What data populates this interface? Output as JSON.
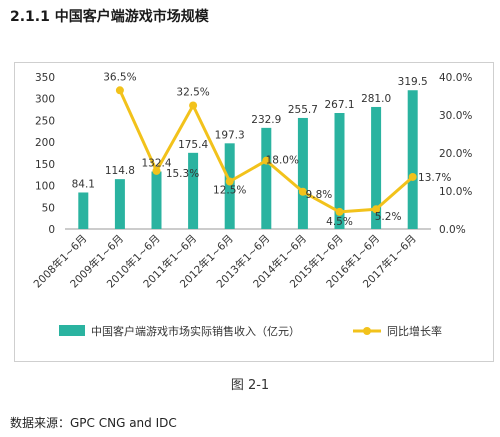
{
  "header": {
    "title": "2.1.1 中国客户端游戏市场规模"
  },
  "figure": {
    "caption": "图 2-1",
    "source": "数据来源：GPC CNG and IDC"
  },
  "colors": {
    "bar": "#2ab3a0",
    "line": "#f2c21b",
    "axis": "#999999",
    "text": "#333333"
  },
  "chart_data": {
    "type": "bar",
    "categories": [
      "2008年1~6月",
      "2009年1~6月",
      "2010年1~6月",
      "2011年1~6月",
      "2012年1~6月",
      "2013年1~6月",
      "2014年1~6月",
      "2015年1~6月",
      "2016年1~6月",
      "2017年1~6月"
    ],
    "series": [
      {
        "name": "中国客户端游戏市场实际销售收入（亿元）",
        "type": "bar",
        "axis": "left",
        "values": [
          84.1,
          114.8,
          132.4,
          175.4,
          197.3,
          232.9,
          255.7,
          267.1,
          281.0,
          319.5
        ],
        "labels": [
          "84.1",
          "114.8",
          "132.4",
          "175.4",
          "197.3",
          "232.9",
          "255.7",
          "267.1",
          "281.0",
          "319.5"
        ]
      },
      {
        "name": "同比增长率",
        "type": "line",
        "axis": "right",
        "values": [
          null,
          36.5,
          15.3,
          32.5,
          12.5,
          18.0,
          9.8,
          4.5,
          5.2,
          13.7
        ],
        "labels": [
          "",
          "36.5%",
          "15.3%",
          "32.5%",
          "12.5%",
          "18.0%",
          "9.8%",
          "4.5%",
          "5.2%",
          "13.7%"
        ]
      }
    ],
    "y_left": {
      "range": [
        0,
        350
      ],
      "ticks": [
        "0",
        "50",
        "100",
        "150",
        "200",
        "250",
        "300",
        "350"
      ]
    },
    "y_right": {
      "range": [
        0,
        40
      ],
      "ticks": [
        "0.0%",
        "10.0%",
        "20.0%",
        "30.0%",
        "40.0%"
      ]
    },
    "grid": false,
    "legend": "bottom"
  }
}
